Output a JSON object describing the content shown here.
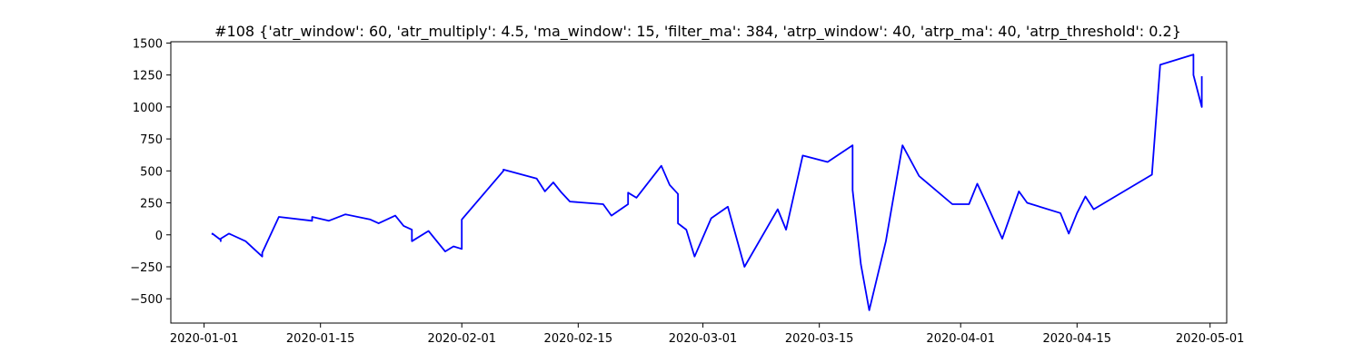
{
  "chart_data": {
    "type": "line",
    "title": "#108 {'atr_window': 60, 'atr_multiply': 4.5, 'ma_window': 15, 'filter_ma': 384, 'atrp_window': 40, 'atrp_ma': 40, 'atrp_threshold': 0.2}",
    "xlabel": "",
    "ylabel": "",
    "x_axis_type": "date",
    "xlim": [
      "2019-12-28",
      "2020-05-03"
    ],
    "ylim": [
      -690,
      1510
    ],
    "x_ticks": [
      "2020-01-01",
      "2020-01-15",
      "2020-02-01",
      "2020-02-15",
      "2020-03-01",
      "2020-03-15",
      "2020-04-01",
      "2020-04-15",
      "2020-05-01"
    ],
    "y_ticks": [
      -500,
      -250,
      0,
      250,
      500,
      750,
      1000,
      1250,
      1500
    ],
    "y_tick_labels": [
      "−500",
      "−250",
      "0",
      "250",
      "500",
      "750",
      "1000",
      "1250",
      "1500"
    ],
    "grid": false,
    "series": [
      {
        "color": "#0000ff",
        "x": [
          "2020-01-02",
          "2020-01-02",
          "2020-01-03",
          "2020-01-03",
          "2020-01-03",
          "2020-01-04",
          "2020-01-06",
          "2020-01-07",
          "2020-01-08",
          "2020-01-08",
          "2020-01-10",
          "2020-01-14",
          "2020-01-14",
          "2020-01-16",
          "2020-01-18",
          "2020-01-21",
          "2020-01-22",
          "2020-01-24",
          "2020-01-25",
          "2020-01-26",
          "2020-01-26",
          "2020-01-28",
          "2020-01-30",
          "2020-01-31",
          "2020-02-01",
          "2020-02-01",
          "2020-02-01",
          "2020-02-06",
          "2020-02-06",
          "2020-02-10",
          "2020-02-11",
          "2020-02-12",
          "2020-02-13",
          "2020-02-14",
          "2020-02-18",
          "2020-02-19",
          "2020-02-21",
          "2020-02-21",
          "2020-02-22",
          "2020-02-25",
          "2020-02-26",
          "2020-02-27",
          "2020-02-27",
          "2020-02-28",
          "2020-02-29",
          "2020-03-02",
          "2020-03-04",
          "2020-03-06",
          "2020-03-10",
          "2020-03-11",
          "2020-03-13",
          "2020-03-16",
          "2020-03-19",
          "2020-03-19",
          "2020-03-20",
          "2020-03-21",
          "2020-03-23",
          "2020-03-25",
          "2020-03-27",
          "2020-03-31",
          "2020-04-02",
          "2020-04-03",
          "2020-04-04",
          "2020-04-06",
          "2020-04-08",
          "2020-04-09",
          "2020-04-13",
          "2020-04-14",
          "2020-04-15",
          "2020-04-16",
          "2020-04-17",
          "2020-04-24",
          "2020-04-25",
          "2020-04-29",
          "2020-04-29",
          "2020-04-30",
          "2020-04-30"
        ],
        "values": [
          0,
          10,
          -40,
          -50,
          -30,
          10,
          -50,
          -110,
          -170,
          -140,
          140,
          110,
          140,
          110,
          160,
          120,
          90,
          150,
          70,
          40,
          -50,
          30,
          -130,
          -90,
          -110,
          -30,
          120,
          500,
          510,
          440,
          340,
          410,
          330,
          260,
          240,
          150,
          240,
          330,
          290,
          540,
          390,
          320,
          90,
          40,
          -170,
          130,
          220,
          -250,
          200,
          40,
          620,
          570,
          700,
          350,
          -230,
          -590,
          -50,
          700,
          460,
          240,
          240,
          400,
          260,
          -30,
          340,
          250,
          170,
          10,
          170,
          300,
          200,
          470,
          1330,
          1410,
          1250,
          1000,
          1240
        ]
      }
    ]
  }
}
